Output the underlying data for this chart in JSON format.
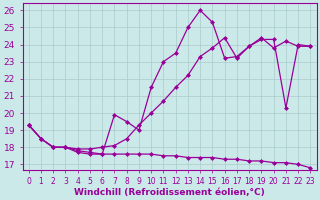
{
  "xlabel": "Windchill (Refroidissement éolien,°C)",
  "bg_color": "#cce9e9",
  "line_color": "#990099",
  "grid_color": "#aacccc",
  "xlim": [
    -0.5,
    23.5
  ],
  "ylim": [
    16.7,
    26.4
  ],
  "xticks": [
    0,
    1,
    2,
    3,
    4,
    5,
    6,
    7,
    8,
    9,
    10,
    11,
    12,
    13,
    14,
    15,
    16,
    17,
    18,
    19,
    20,
    21,
    22,
    23
  ],
  "yticks": [
    17,
    18,
    19,
    20,
    21,
    22,
    23,
    24,
    25,
    26
  ],
  "line1_x": [
    0,
    1,
    2,
    3,
    4,
    5,
    6,
    7,
    8,
    9,
    10,
    11,
    12,
    13,
    14,
    15,
    16,
    17,
    18,
    19,
    20,
    21,
    22,
    23
  ],
  "line1_y": [
    19.3,
    18.5,
    18.0,
    18.0,
    17.7,
    17.6,
    17.6,
    19.9,
    19.5,
    19.0,
    21.5,
    23.0,
    23.5,
    25.0,
    26.0,
    25.3,
    23.2,
    23.3,
    23.9,
    24.3,
    24.3,
    20.3,
    24.0,
    23.9
  ],
  "line2_x": [
    0,
    1,
    2,
    3,
    4,
    5,
    6,
    7,
    8,
    9,
    10,
    11,
    12,
    13,
    14,
    15,
    16,
    17,
    18,
    19,
    20,
    21,
    22,
    23
  ],
  "line2_y": [
    19.3,
    18.5,
    18.0,
    18.0,
    17.9,
    17.9,
    18.0,
    18.1,
    18.5,
    19.3,
    20.0,
    20.7,
    21.5,
    22.2,
    23.3,
    23.8,
    24.4,
    23.2,
    23.9,
    24.4,
    23.8,
    24.2,
    23.9,
    23.9
  ],
  "line3_x": [
    0,
    1,
    2,
    3,
    4,
    5,
    6,
    7,
    8,
    9,
    10,
    11,
    12,
    13,
    14,
    15,
    16,
    17,
    18,
    19,
    20,
    21,
    22,
    23
  ],
  "line3_y": [
    19.3,
    18.5,
    18.0,
    18.0,
    17.8,
    17.7,
    17.6,
    17.6,
    17.6,
    17.6,
    17.6,
    17.5,
    17.5,
    17.4,
    17.4,
    17.4,
    17.3,
    17.3,
    17.2,
    17.2,
    17.1,
    17.1,
    17.0,
    16.8
  ],
  "marker": "D",
  "markersize": 2.0,
  "linewidth": 0.9
}
